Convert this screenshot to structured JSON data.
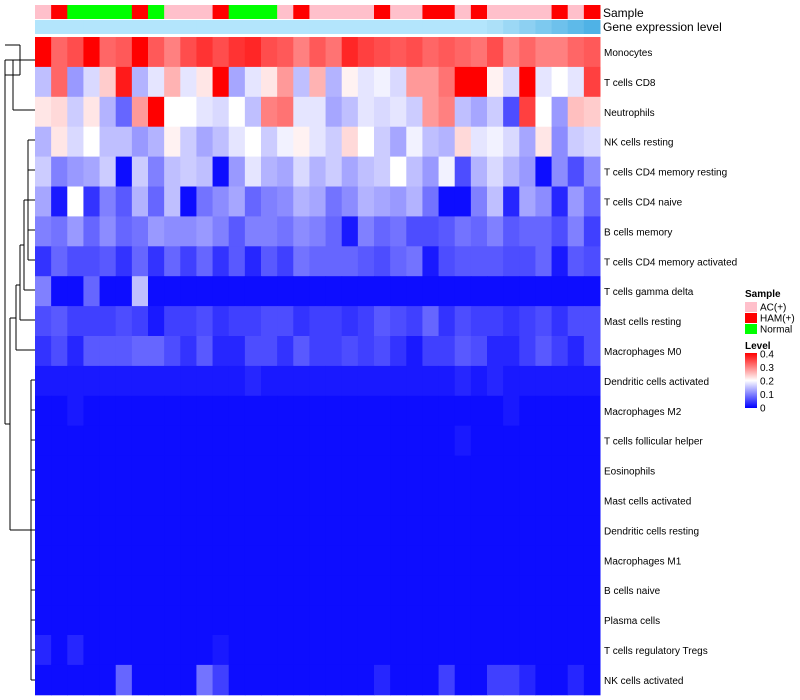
{
  "chart_data": {
    "type": "heatmap",
    "title": "",
    "annotation_labels": [
      "Sample",
      "Gene expression level"
    ],
    "legend": {
      "sample_title": "Sample",
      "sample_entries": [
        {
          "label": "AC(+)",
          "color": "#ffc0cb"
        },
        {
          "label": "HAM(+)",
          "color": "#ff0000"
        },
        {
          "label": "Normal",
          "color": "#00ff00"
        }
      ],
      "level_title": "Level",
      "level_ticks": [
        "0.4",
        "0.3",
        "0.2",
        "0.1",
        "0"
      ],
      "scale_max": 0.4,
      "color_low": "#0000ff",
      "color_mid": "#ffffff",
      "color_high": "#ff0000"
    },
    "sample_groups": [
      "AC(+)",
      "HAM(+)",
      "Normal",
      "Normal",
      "Normal",
      "Normal",
      "HAM(+)",
      "Normal",
      "AC(+)",
      "AC(+)",
      "AC(+)",
      "HAM(+)",
      "Normal",
      "Normal",
      "Normal",
      "AC(+)",
      "HAM(+)",
      "AC(+)",
      "AC(+)",
      "AC(+)",
      "AC(+)",
      "HAM(+)",
      "AC(+)",
      "AC(+)",
      "HAM(+)",
      "HAM(+)",
      "AC(+)",
      "HAM(+)",
      "AC(+)",
      "AC(+)",
      "AC(+)",
      "AC(+)",
      "HAM(+)",
      "AC(+)",
      "HAM(+)"
    ],
    "expression_level_colors": [
      "#b3e5fc",
      "#b3e5fc",
      "#b3e5fc",
      "#b3e5fc",
      "#b3e5fc",
      "#b3e5fc",
      "#b3e5fc",
      "#b3e5fc",
      "#b3e5fc",
      "#b3e5fc",
      "#b3e5fc",
      "#b3e5fc",
      "#b3e5fc",
      "#b3e5fc",
      "#b3e5fc",
      "#b3e5fc",
      "#b3e5fc",
      "#b3e5fc",
      "#b3e5fc",
      "#b3e5fc",
      "#b3e5fc",
      "#b3e5fc",
      "#b3e5fc",
      "#b3e5fc",
      "#b3e5fc",
      "#b3e5fc",
      "#b3e5fc",
      "#b3e5fc",
      "#ace0f8",
      "#9cd8f5",
      "#8dd0f2",
      "#7dc9ef",
      "#6ec1ec",
      "#5ebae9",
      "#4fb2e6"
    ],
    "rows": [
      {
        "label": "Monocytes",
        "values": [
          0.4,
          0.32,
          0.34,
          0.4,
          0.32,
          0.33,
          0.4,
          0.33,
          0.3,
          0.34,
          0.36,
          0.34,
          0.36,
          0.37,
          0.34,
          0.33,
          0.3,
          0.33,
          0.31,
          0.37,
          0.35,
          0.34,
          0.33,
          0.34,
          0.32,
          0.33,
          0.32,
          0.31,
          0.34,
          0.3,
          0.32,
          0.3,
          0.3,
          0.32,
          0.33
        ]
      },
      {
        "label": "T cells CD8",
        "values": [
          0.15,
          0.32,
          0.12,
          0.17,
          0.24,
          0.38,
          0.14,
          0.18,
          0.26,
          0.18,
          0.22,
          0.4,
          0.13,
          0.18,
          0.22,
          0.28,
          0.15,
          0.26,
          0.14,
          0.21,
          0.18,
          0.19,
          0.17,
          0.28,
          0.28,
          0.31,
          0.4,
          0.41,
          0.21,
          0.17,
          0.4,
          0.18,
          0.2,
          0.18,
          0.35
        ]
      },
      {
        "label": "Neutrophils",
        "values": [
          0.22,
          0.23,
          0.16,
          0.22,
          0.14,
          0.08,
          0.28,
          0.41,
          0.2,
          0.2,
          0.18,
          0.17,
          0.2,
          0.15,
          0.3,
          0.31,
          0.18,
          0.18,
          0.13,
          0.15,
          0.18,
          0.17,
          0.18,
          0.16,
          0.28,
          0.3,
          0.15,
          0.13,
          0.16,
          0.06,
          0.35,
          0.2,
          0.12,
          0.25,
          0.24
        ]
      },
      {
        "label": "NK cells resting",
        "values": [
          0.14,
          0.22,
          0.17,
          0.2,
          0.15,
          0.15,
          0.12,
          0.14,
          0.21,
          0.16,
          0.13,
          0.15,
          0.18,
          0.2,
          0.16,
          0.19,
          0.21,
          0.18,
          0.16,
          0.23,
          0.2,
          0.16,
          0.13,
          0.19,
          0.15,
          0.14,
          0.23,
          0.18,
          0.19,
          0.17,
          0.13,
          0.22,
          0.11,
          0.16,
          0.17
        ]
      },
      {
        "label": "T cells CD4 memory resting",
        "values": [
          0.16,
          0.1,
          0.12,
          0.13,
          0.16,
          0.01,
          0.16,
          0.1,
          0.15,
          0.16,
          0.15,
          0.01,
          0.12,
          0.18,
          0.14,
          0.13,
          0.17,
          0.14,
          0.16,
          0.13,
          0.15,
          0.16,
          0.2,
          0.15,
          0.12,
          0.19,
          0.06,
          0.14,
          0.17,
          0.14,
          0.12,
          0.01,
          0.11,
          0.06,
          0.11
        ]
      },
      {
        "label": "T cells CD4 naive",
        "values": [
          0.13,
          0.02,
          0.2,
          0.04,
          0.1,
          0.07,
          0.14,
          0.08,
          0.15,
          0.01,
          0.09,
          0.11,
          0.13,
          0.08,
          0.1,
          0.11,
          0.14,
          0.13,
          0.09,
          0.11,
          0.14,
          0.13,
          0.12,
          0.14,
          0.09,
          0.01,
          0.01,
          0.1,
          0.15,
          0.03,
          0.13,
          0.11,
          0.03,
          0.12,
          0.08
        ]
      },
      {
        "label": "B cells memory",
        "values": [
          0.1,
          0.09,
          0.12,
          0.08,
          0.11,
          0.08,
          0.09,
          0.12,
          0.11,
          0.11,
          0.12,
          0.1,
          0.07,
          0.1,
          0.1,
          0.09,
          0.11,
          0.1,
          0.08,
          0.02,
          0.1,
          0.08,
          0.09,
          0.06,
          0.06,
          0.07,
          0.09,
          0.08,
          0.1,
          0.07,
          0.08,
          0.08,
          0.06,
          0.1,
          0.05
        ]
      },
      {
        "label": "T cells CD4 memory activated",
        "values": [
          0.04,
          0.08,
          0.06,
          0.06,
          0.07,
          0.04,
          0.08,
          0.04,
          0.08,
          0.05,
          0.08,
          0.04,
          0.07,
          0.03,
          0.07,
          0.05,
          0.09,
          0.08,
          0.08,
          0.08,
          0.07,
          0.06,
          0.08,
          0.09,
          0.02,
          0.06,
          0.07,
          0.07,
          0.07,
          0.06,
          0.06,
          0.08,
          0.02,
          0.07,
          0.06
        ]
      },
      {
        "label": "T cells gamma delta",
        "values": [
          0.1,
          0.01,
          0.01,
          0.08,
          0.01,
          0.01,
          0.15,
          0.01,
          0.01,
          0.01,
          0.01,
          0.01,
          0.01,
          0.01,
          0.01,
          0.01,
          0.01,
          0.01,
          0.01,
          0.01,
          0.01,
          0.01,
          0.01,
          0.01,
          0.01,
          0.01,
          0.01,
          0.01,
          0.01,
          0.01,
          0.01,
          0.01,
          0.01,
          0.01,
          0.01
        ]
      },
      {
        "label": "Mast cells resting",
        "values": [
          0.06,
          0.07,
          0.05,
          0.05,
          0.05,
          0.06,
          0.05,
          0.02,
          0.05,
          0.05,
          0.06,
          0.04,
          0.05,
          0.05,
          0.06,
          0.06,
          0.04,
          0.05,
          0.05,
          0.04,
          0.05,
          0.07,
          0.06,
          0.05,
          0.08,
          0.04,
          0.06,
          0.05,
          0.05,
          0.04,
          0.05,
          0.06,
          0.04,
          0.06,
          0.06
        ]
      },
      {
        "label": "Macrophages M0",
        "values": [
          0.04,
          0.06,
          0.03,
          0.07,
          0.07,
          0.07,
          0.08,
          0.08,
          0.06,
          0.04,
          0.07,
          0.03,
          0.03,
          0.06,
          0.06,
          0.04,
          0.07,
          0.05,
          0.05,
          0.06,
          0.05,
          0.06,
          0.04,
          0.02,
          0.05,
          0.05,
          0.07,
          0.06,
          0.03,
          0.03,
          0.05,
          0.07,
          0.05,
          0.03,
          0.06
        ]
      },
      {
        "label": "Dendritic cells activated",
        "values": [
          0.02,
          0.02,
          0.02,
          0.02,
          0.02,
          0.02,
          0.02,
          0.02,
          0.02,
          0.02,
          0.02,
          0.02,
          0.02,
          0.03,
          0.02,
          0.02,
          0.02,
          0.02,
          0.02,
          0.02,
          0.02,
          0.02,
          0.02,
          0.02,
          0.02,
          0.02,
          0.03,
          0.02,
          0.03,
          0.02,
          0.02,
          0.02,
          0.02,
          0.02,
          0.02
        ]
      },
      {
        "label": "Macrophages M2",
        "values": [
          0.01,
          0.01,
          0.02,
          0.01,
          0.01,
          0.01,
          0.01,
          0.01,
          0.01,
          0.01,
          0.01,
          0.01,
          0.01,
          0.01,
          0.01,
          0.01,
          0.01,
          0.01,
          0.01,
          0.01,
          0.01,
          0.01,
          0.01,
          0.01,
          0.01,
          0.01,
          0.01,
          0.01,
          0.01,
          0.02,
          0.01,
          0.01,
          0.01,
          0.01,
          0.01
        ]
      },
      {
        "label": "T cells follicular helper",
        "values": [
          0.01,
          0.01,
          0.01,
          0.01,
          0.01,
          0.01,
          0.01,
          0.01,
          0.01,
          0.01,
          0.01,
          0.01,
          0.01,
          0.01,
          0.01,
          0.01,
          0.01,
          0.01,
          0.01,
          0.01,
          0.01,
          0.01,
          0.01,
          0.01,
          0.01,
          0.01,
          0.02,
          0.01,
          0.01,
          0.01,
          0.01,
          0.01,
          0.01,
          0.01,
          0.01
        ]
      },
      {
        "label": "Eosinophils",
        "values": [
          0.01,
          0.01,
          0.01,
          0.01,
          0.01,
          0.01,
          0.01,
          0.01,
          0.01,
          0.01,
          0.01,
          0.01,
          0.01,
          0.01,
          0.01,
          0.01,
          0.01,
          0.01,
          0.01,
          0.01,
          0.01,
          0.01,
          0.01,
          0.01,
          0.01,
          0.01,
          0.01,
          0.01,
          0.01,
          0.01,
          0.01,
          0.01,
          0.01,
          0.01,
          0.01
        ]
      },
      {
        "label": "Mast cells activated",
        "values": [
          0.01,
          0.01,
          0.01,
          0.01,
          0.01,
          0.01,
          0.01,
          0.01,
          0.01,
          0.01,
          0.01,
          0.01,
          0.01,
          0.01,
          0.01,
          0.01,
          0.01,
          0.01,
          0.01,
          0.01,
          0.01,
          0.01,
          0.01,
          0.01,
          0.01,
          0.01,
          0.01,
          0.01,
          0.01,
          0.01,
          0.01,
          0.01,
          0.01,
          0.01,
          0.01
        ]
      },
      {
        "label": "Dendritic cells resting",
        "values": [
          0.01,
          0.01,
          0.01,
          0.01,
          0.01,
          0.01,
          0.01,
          0.01,
          0.01,
          0.01,
          0.01,
          0.01,
          0.01,
          0.01,
          0.01,
          0.01,
          0.01,
          0.01,
          0.01,
          0.01,
          0.01,
          0.01,
          0.01,
          0.01,
          0.01,
          0.01,
          0.01,
          0.01,
          0.01,
          0.01,
          0.01,
          0.01,
          0.01,
          0.01,
          0.01
        ]
      },
      {
        "label": "Macrophages M1",
        "values": [
          0.01,
          0.01,
          0.01,
          0.01,
          0.01,
          0.01,
          0.01,
          0.01,
          0.01,
          0.01,
          0.01,
          0.01,
          0.01,
          0.01,
          0.01,
          0.01,
          0.01,
          0.01,
          0.01,
          0.01,
          0.01,
          0.01,
          0.01,
          0.01,
          0.01,
          0.01,
          0.01,
          0.01,
          0.01,
          0.01,
          0.01,
          0.01,
          0.01,
          0.01,
          0.01
        ]
      },
      {
        "label": "B cells naive",
        "values": [
          0.01,
          0.01,
          0.01,
          0.01,
          0.01,
          0.01,
          0.01,
          0.01,
          0.01,
          0.01,
          0.01,
          0.01,
          0.01,
          0.01,
          0.01,
          0.01,
          0.01,
          0.01,
          0.01,
          0.01,
          0.01,
          0.01,
          0.01,
          0.01,
          0.01,
          0.01,
          0.01,
          0.01,
          0.01,
          0.01,
          0.01,
          0.01,
          0.01,
          0.01,
          0.01
        ]
      },
      {
        "label": "Plasma cells",
        "values": [
          0.01,
          0.01,
          0.01,
          0.01,
          0.01,
          0.01,
          0.01,
          0.01,
          0.01,
          0.01,
          0.01,
          0.01,
          0.01,
          0.01,
          0.01,
          0.01,
          0.01,
          0.01,
          0.01,
          0.01,
          0.01,
          0.01,
          0.01,
          0.01,
          0.01,
          0.01,
          0.01,
          0.01,
          0.01,
          0.01,
          0.01,
          0.01,
          0.01,
          0.01,
          0.01
        ]
      },
      {
        "label": "T cells regulatory  Tregs",
        "values": [
          0.03,
          0.01,
          0.03,
          0.01,
          0.01,
          0.01,
          0.01,
          0.01,
          0.01,
          0.01,
          0.01,
          0.02,
          0.01,
          0.01,
          0.01,
          0.01,
          0.01,
          0.01,
          0.01,
          0.01,
          0.01,
          0.01,
          0.01,
          0.01,
          0.01,
          0.01,
          0.01,
          0.01,
          0.01,
          0.01,
          0.01,
          0.01,
          0.01,
          0.01,
          0.01
        ]
      },
      {
        "label": "NK cells activated",
        "values": [
          0.01,
          0.01,
          0.01,
          0.01,
          0.01,
          0.08,
          0.01,
          0.01,
          0.01,
          0.01,
          0.09,
          0.05,
          0.01,
          0.01,
          0.01,
          0.01,
          0.01,
          0.01,
          0.01,
          0.01,
          0.01,
          0.03,
          0.01,
          0.01,
          0.01,
          0.05,
          0.01,
          0.01,
          0.05,
          0.05,
          0.03,
          0.01,
          0.01,
          0.03,
          0.01
        ]
      }
    ]
  }
}
